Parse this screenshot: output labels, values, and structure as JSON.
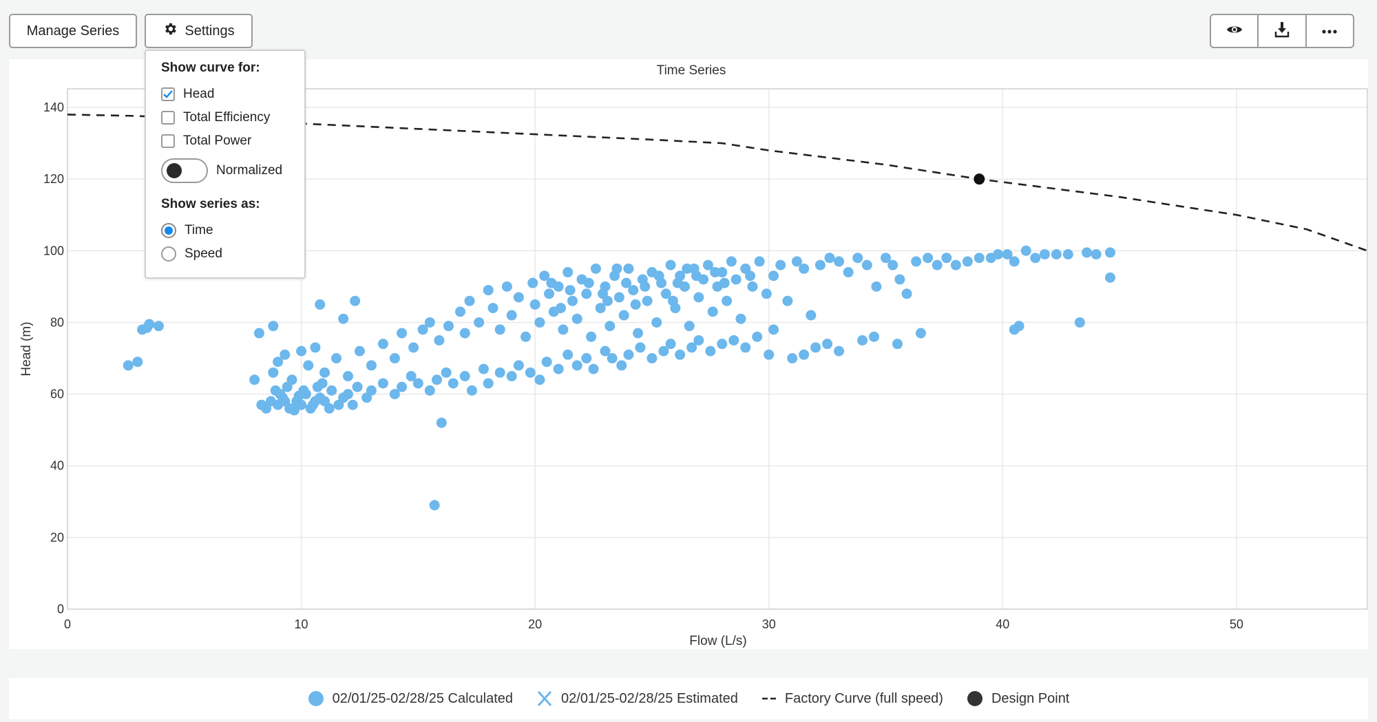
{
  "toolbar": {
    "manage_series": "Manage Series",
    "settings": "Settings",
    "view_icon": "eye-icon",
    "download_icon": "download-icon",
    "more_icon": "more-icon"
  },
  "settings_popup": {
    "curve_heading": "Show curve for:",
    "curves": [
      {
        "label": "Head",
        "checked": true
      },
      {
        "label": "Total Efficiency",
        "checked": false
      },
      {
        "label": "Total Power",
        "checked": false
      }
    ],
    "normalized_label": "Normalized",
    "normalized_on": false,
    "series_heading": "Show series as:",
    "series_modes": [
      {
        "label": "Time",
        "selected": true
      },
      {
        "label": "Speed",
        "selected": false
      }
    ]
  },
  "colors": {
    "calculated": "#6cb7ec",
    "estimated": "#6cb7ec",
    "factory": "#222222",
    "design": "#111111"
  },
  "chart_data": {
    "type": "scatter",
    "title": "Time Series",
    "xlabel": "Flow (L/s)",
    "ylabel": "Head (m)",
    "xlim": [
      0,
      55.6
    ],
    "ylim": [
      0,
      145
    ],
    "xticks": [
      "0",
      "10",
      "20",
      "30",
      "40",
      "50"
    ],
    "yticks": [
      "0",
      "20",
      "40",
      "60",
      "80",
      "100",
      "120",
      "140"
    ],
    "grid": true,
    "legend": [
      "02/01/25-02/28/25 Calculated",
      "02/01/25-02/28/25 Estimated",
      "Factory Curve (full speed)",
      "Design Point"
    ],
    "legend_placement": "bottom",
    "factory_curve": [
      [
        0,
        138
      ],
      [
        3,
        137.6
      ],
      [
        10,
        135.5
      ],
      [
        15,
        134
      ],
      [
        20,
        132.5
      ],
      [
        25,
        131
      ],
      [
        28,
        130
      ],
      [
        30,
        128
      ],
      [
        35,
        124
      ],
      [
        39,
        120
      ],
      [
        45,
        115
      ],
      [
        50,
        110
      ],
      [
        53,
        106
      ],
      [
        55.6,
        100
      ]
    ],
    "design_point": [
      39,
      120
    ],
    "calculated": [
      [
        2.6,
        68
      ],
      [
        3,
        69
      ],
      [
        3.2,
        78
      ],
      [
        3.4,
        78.5
      ],
      [
        3.5,
        79.5
      ],
      [
        3.9,
        79
      ],
      [
        8.2,
        77
      ],
      [
        8.8,
        79
      ],
      [
        10.8,
        85
      ],
      [
        12.3,
        86
      ],
      [
        11.8,
        81
      ],
      [
        15.7,
        29
      ],
      [
        16,
        52
      ],
      [
        40.5,
        78
      ],
      [
        40.7,
        79
      ],
      [
        43.3,
        80
      ],
      [
        44.6,
        92.5
      ],
      [
        44.6,
        99.5
      ],
      [
        36.5,
        77
      ],
      [
        35.5,
        74
      ],
      [
        8,
        64
      ],
      [
        8.3,
        57
      ],
      [
        8.5,
        56
      ],
      [
        8.7,
        58
      ],
      [
        9,
        57
      ],
      [
        9.2,
        59
      ],
      [
        9.5,
        56
      ],
      [
        9.8,
        58
      ],
      [
        10,
        57
      ],
      [
        10.2,
        60
      ],
      [
        10.5,
        57
      ],
      [
        10.8,
        59
      ],
      [
        11,
        58
      ],
      [
        11.3,
        61
      ],
      [
        11.6,
        57
      ],
      [
        12,
        60
      ],
      [
        12.4,
        62
      ],
      [
        12.8,
        59
      ],
      [
        13,
        61
      ],
      [
        13.5,
        63
      ],
      [
        14,
        60
      ],
      [
        14.3,
        62
      ],
      [
        14.7,
        65
      ],
      [
        15,
        63
      ],
      [
        15.5,
        61
      ],
      [
        15.8,
        64
      ],
      [
        16.2,
        66
      ],
      [
        16.5,
        63
      ],
      [
        17,
        65
      ],
      [
        17.3,
        61
      ],
      [
        17.8,
        67
      ],
      [
        18,
        63
      ],
      [
        18.5,
        66
      ],
      [
        19,
        65
      ],
      [
        19.3,
        68
      ],
      [
        19.8,
        66
      ],
      [
        20.2,
        64
      ],
      [
        20.5,
        69
      ],
      [
        21,
        67
      ],
      [
        21.4,
        71
      ],
      [
        21.8,
        68
      ],
      [
        22.2,
        70
      ],
      [
        22.5,
        67
      ],
      [
        23,
        72
      ],
      [
        23.3,
        70
      ],
      [
        23.7,
        68
      ],
      [
        24,
        71
      ],
      [
        24.5,
        73
      ],
      [
        25,
        70
      ],
      [
        25.5,
        72
      ],
      [
        25.8,
        74
      ],
      [
        26.2,
        71
      ],
      [
        26.7,
        73
      ],
      [
        27,
        75
      ],
      [
        27.5,
        72
      ],
      [
        28,
        74
      ],
      [
        28.5,
        75
      ],
      [
        29,
        73
      ],
      [
        29.5,
        76
      ],
      [
        30,
        71
      ],
      [
        30.2,
        78
      ],
      [
        31,
        70
      ],
      [
        31.5,
        71
      ],
      [
        32,
        73
      ],
      [
        32.5,
        74
      ],
      [
        33,
        72
      ],
      [
        34,
        75
      ],
      [
        34.5,
        76
      ],
      [
        9.1,
        60
      ],
      [
        9.4,
        62
      ],
      [
        9.7,
        55.5
      ],
      [
        10.1,
        61
      ],
      [
        10.4,
        56
      ],
      [
        10.7,
        62
      ],
      [
        11.2,
        56
      ],
      [
        11.8,
        59
      ],
      [
        12.2,
        57
      ],
      [
        9.3,
        58
      ],
      [
        9.9,
        59.5
      ],
      [
        10.6,
        58
      ],
      [
        8.9,
        61
      ],
      [
        10.9,
        63
      ],
      [
        8.8,
        66
      ],
      [
        9,
        69
      ],
      [
        9.3,
        71
      ],
      [
        9.6,
        64
      ],
      [
        10,
        72
      ],
      [
        10.3,
        68
      ],
      [
        10.6,
        73
      ],
      [
        11,
        66
      ],
      [
        11.5,
        70
      ],
      [
        12,
        65
      ],
      [
        12.5,
        72
      ],
      [
        13,
        68
      ],
      [
        13.5,
        74
      ],
      [
        14,
        70
      ],
      [
        14.3,
        77
      ],
      [
        14.8,
        73
      ],
      [
        15.2,
        78
      ],
      [
        15.5,
        80
      ],
      [
        15.9,
        75
      ],
      [
        16.3,
        79
      ],
      [
        16.8,
        83
      ],
      [
        17,
        77
      ],
      [
        17.2,
        86
      ],
      [
        17.6,
        80
      ],
      [
        18,
        89
      ],
      [
        18.2,
        84
      ],
      [
        18.5,
        78
      ],
      [
        18.8,
        90
      ],
      [
        19,
        82
      ],
      [
        19.3,
        87
      ],
      [
        19.6,
        76
      ],
      [
        19.9,
        91
      ],
      [
        20,
        85
      ],
      [
        20.2,
        80
      ],
      [
        20.4,
        93
      ],
      [
        20.6,
        88
      ],
      [
        20.8,
        83
      ],
      [
        21,
        90
      ],
      [
        21.2,
        78
      ],
      [
        21.4,
        94
      ],
      [
        21.6,
        86
      ],
      [
        21.8,
        81
      ],
      [
        22,
        92
      ],
      [
        22.2,
        88
      ],
      [
        22.4,
        76
      ],
      [
        22.6,
        95
      ],
      [
        22.8,
        84
      ],
      [
        23,
        90
      ],
      [
        23.2,
        79
      ],
      [
        23.4,
        93
      ],
      [
        23.6,
        87
      ],
      [
        23.8,
        82
      ],
      [
        24,
        95
      ],
      [
        24.2,
        89
      ],
      [
        24.4,
        77
      ],
      [
        24.6,
        92
      ],
      [
        24.8,
        86
      ],
      [
        25,
        94
      ],
      [
        25.2,
        80
      ],
      [
        25.4,
        91
      ],
      [
        25.6,
        88
      ],
      [
        25.8,
        96
      ],
      [
        26,
        84
      ],
      [
        26.2,
        93
      ],
      [
        26.4,
        90
      ],
      [
        26.6,
        79
      ],
      [
        26.8,
        95
      ],
      [
        27,
        87
      ],
      [
        27.2,
        92
      ],
      [
        27.4,
        96
      ],
      [
        27.6,
        83
      ],
      [
        27.8,
        90
      ],
      [
        28,
        94
      ],
      [
        28.2,
        86
      ],
      [
        28.4,
        97
      ],
      [
        28.6,
        92
      ],
      [
        28.8,
        81
      ],
      [
        29,
        95
      ],
      [
        29.3,
        90
      ],
      [
        29.6,
        97
      ],
      [
        29.9,
        88
      ],
      [
        30.2,
        93
      ],
      [
        30.5,
        96
      ],
      [
        30.8,
        86
      ],
      [
        31.2,
        97
      ],
      [
        31.5,
        95
      ],
      [
        31.8,
        82
      ],
      [
        32.2,
        96
      ],
      [
        32.6,
        98
      ],
      [
        33,
        97
      ],
      [
        33.4,
        94
      ],
      [
        33.8,
        98
      ],
      [
        34.2,
        96
      ],
      [
        34.6,
        90
      ],
      [
        35,
        98
      ],
      [
        35.3,
        96
      ],
      [
        35.6,
        92
      ],
      [
        35.9,
        88
      ],
      [
        36.3,
        97
      ],
      [
        36.8,
        98
      ],
      [
        37.2,
        96
      ],
      [
        37.6,
        98
      ],
      [
        38,
        96
      ],
      [
        38.5,
        97
      ],
      [
        39,
        98
      ],
      [
        39.5,
        98
      ],
      [
        39.8,
        99
      ],
      [
        40.2,
        99
      ],
      [
        40.5,
        97
      ],
      [
        41,
        100
      ],
      [
        41.4,
        98
      ],
      [
        41.8,
        99
      ],
      [
        42.3,
        99
      ],
      [
        42.8,
        99
      ],
      [
        43.6,
        99.5
      ],
      [
        44,
        99
      ],
      [
        21.5,
        89
      ],
      [
        22.3,
        91
      ],
      [
        23.1,
        86
      ],
      [
        23.9,
        91
      ],
      [
        24.7,
        90
      ],
      [
        25.3,
        93
      ],
      [
        26.1,
        91
      ],
      [
        26.9,
        93
      ],
      [
        27.7,
        94
      ],
      [
        22.9,
        88
      ],
      [
        24.3,
        85
      ],
      [
        25.9,
        86
      ],
      [
        21.1,
        84
      ],
      [
        20.7,
        91
      ],
      [
        23.5,
        95
      ],
      [
        26.5,
        95
      ],
      [
        28.1,
        91
      ],
      [
        29.2,
        93
      ]
    ]
  }
}
